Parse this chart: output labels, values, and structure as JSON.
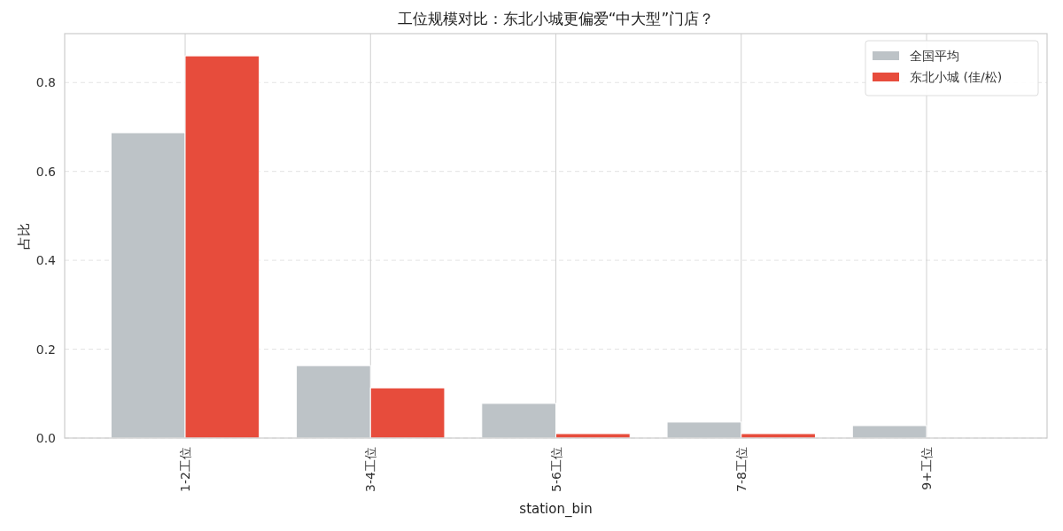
{
  "chart_data": {
    "type": "bar",
    "title": "工位规模对比：东北小城更偏爱“中大型”门店？",
    "xlabel": "station_bin",
    "ylabel": "占比",
    "categories": [
      "1-2工位",
      "3-4工位",
      "5-6工位",
      "7-8工位",
      "9+工位"
    ],
    "series": [
      {
        "name": "全国平均",
        "color": "#bdc3c7",
        "values": [
          0.687,
          0.163,
          0.078,
          0.036,
          0.028
        ]
      },
      {
        "name": "东北小城 (佳/松)",
        "color": "#e74c3c",
        "values": [
          0.86,
          0.113,
          0.01,
          0.01,
          0
        ]
      }
    ],
    "ylim": [
      0,
      0.91
    ],
    "yticks": [
      {
        "value": 0,
        "label": "0.0"
      },
      0.2,
      0.4,
      0.6,
      0.8
    ],
    "grid": true,
    "legend": "top right"
  }
}
